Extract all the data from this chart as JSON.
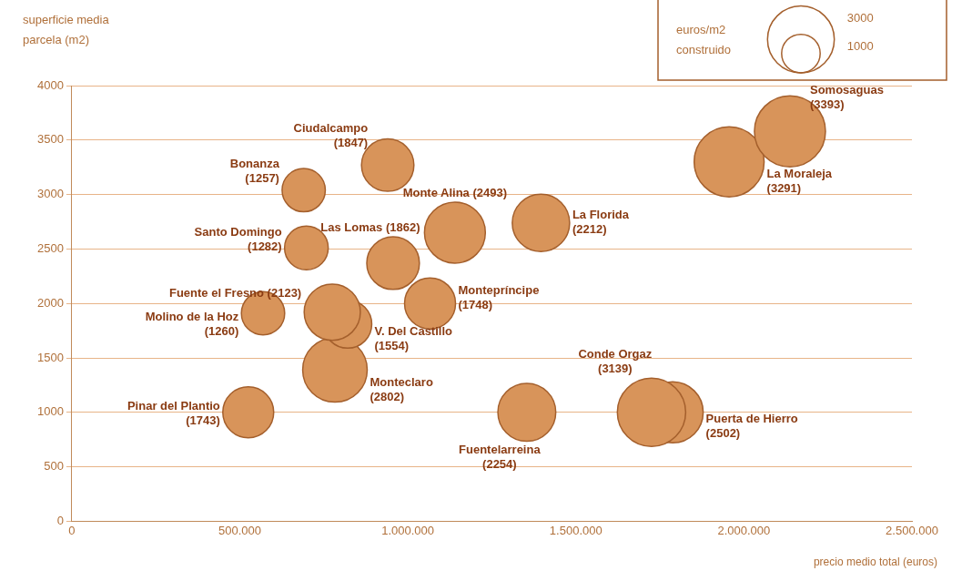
{
  "chart_data": {
    "type": "bubble",
    "ylabel": "superficie media parcela (m2)",
    "xlabel": "precio medio total (euros)",
    "legend_title": "euros/m2 construido",
    "size_legend": [
      3000,
      1000
    ],
    "xlim": [
      0,
      2500000
    ],
    "ylim": [
      0,
      4000
    ],
    "xticks": [
      {
        "value": 0,
        "label": "0"
      },
      {
        "value": 500000,
        "label": "500.000"
      },
      {
        "value": 1000000,
        "label": "1.000.000"
      },
      {
        "value": 1500000,
        "label": "1.500.000"
      },
      {
        "value": 2000000,
        "label": "2.000.000"
      },
      {
        "value": 2500000,
        "label": "2.500.000"
      }
    ],
    "yticks": [
      0,
      500,
      1000,
      1500,
      2000,
      2500,
      3000,
      3500,
      4000
    ],
    "grid": "y",
    "series": [
      {
        "name": "Somosaguas",
        "color": "#d8945a",
        "x": [
          2137000
        ],
        "values": [
          3580
        ],
        "sizes": [
          3393
        ],
        "value_labels": [
          "(3393)"
        ]
      },
      {
        "name": "La Moraleja",
        "color": "#d8945a",
        "x": [
          1956000
        ],
        "values": [
          3300
        ],
        "sizes": [
          3291
        ],
        "value_labels": [
          "(3291)"
        ]
      },
      {
        "name": "Ciudalcampo",
        "color": "#d8945a",
        "x": [
          940000
        ],
        "values": [
          3270
        ],
        "sizes": [
          1847
        ],
        "value_labels": [
          "(1847)"
        ]
      },
      {
        "name": "Bonanza",
        "color": "#d8945a",
        "x": [
          690000
        ],
        "values": [
          3040
        ],
        "sizes": [
          1257
        ],
        "value_labels": [
          "(1257)"
        ]
      },
      {
        "name": "Santo Domingo",
        "color": "#d8945a",
        "x": [
          698000
        ],
        "values": [
          2510
        ],
        "sizes": [
          1282
        ],
        "value_labels": [
          "(1282)"
        ]
      },
      {
        "name": "Las Lomas",
        "color": "#d8945a",
        "x": [
          956000
        ],
        "values": [
          2370
        ],
        "sizes": [
          1862
        ],
        "value_labels": [
          "(1862)"
        ]
      },
      {
        "name": "Monte Alina",
        "color": "#d8945a",
        "x": [
          1140000
        ],
        "values": [
          2650
        ],
        "sizes": [
          2493
        ],
        "value_labels": [
          "(2493)"
        ]
      },
      {
        "name": "La Florida",
        "color": "#d8945a",
        "x": [
          1396000
        ],
        "values": [
          2740
        ],
        "sizes": [
          2212
        ],
        "value_labels": [
          "(2212)"
        ]
      },
      {
        "name": "Fuente el Fresno",
        "color": "#d8945a",
        "x": [
          775000
        ],
        "values": [
          1920
        ],
        "sizes": [
          2123
        ],
        "value_labels": [
          "(2123)"
        ]
      },
      {
        "name": "Montepríncipe",
        "color": "#d8945a",
        "x": [
          1066000
        ],
        "values": [
          2000
        ],
        "sizes": [
          1748
        ],
        "value_labels": [
          "(1748)"
        ]
      },
      {
        "name": "Molino de la Hoz",
        "color": "#d8945a",
        "x": [
          569000
        ],
        "values": [
          1910
        ],
        "sizes": [
          1260
        ],
        "value_labels": [
          "(1260)"
        ]
      },
      {
        "name": "V. Del Castillo",
        "color": "#d8945a",
        "x": [
          821000
        ],
        "values": [
          1810
        ],
        "sizes": [
          1554
        ],
        "value_labels": [
          "(1554)"
        ]
      },
      {
        "name": "Monteclaro",
        "color": "#d8945a",
        "x": [
          783000
        ],
        "values": [
          1390
        ],
        "sizes": [
          2802
        ],
        "value_labels": [
          "(2802)"
        ]
      },
      {
        "name": "Pinar del Plantio",
        "color": "#d8945a",
        "x": [
          525000
        ],
        "values": [
          1000
        ],
        "sizes": [
          1743
        ],
        "value_labels": [
          "(1743)"
        ]
      },
      {
        "name": "Fuentelarreina",
        "color": "#d8945a",
        "x": [
          1354000
        ],
        "values": [
          1000
        ],
        "sizes": [
          2254
        ],
        "value_labels": [
          "(2254)"
        ]
      },
      {
        "name": "Conde Orgaz",
        "color": "#d8945a",
        "x": [
          1725000
        ],
        "values": [
          1000
        ],
        "sizes": [
          3139
        ],
        "value_labels": [
          "(3139)"
        ]
      },
      {
        "name": "Puerta de Hierro",
        "color": "#d8945a",
        "x": [
          1788000
        ],
        "values": [
          1000
        ],
        "sizes": [
          2502
        ],
        "value_labels": [
          "(2502)"
        ]
      }
    ]
  }
}
